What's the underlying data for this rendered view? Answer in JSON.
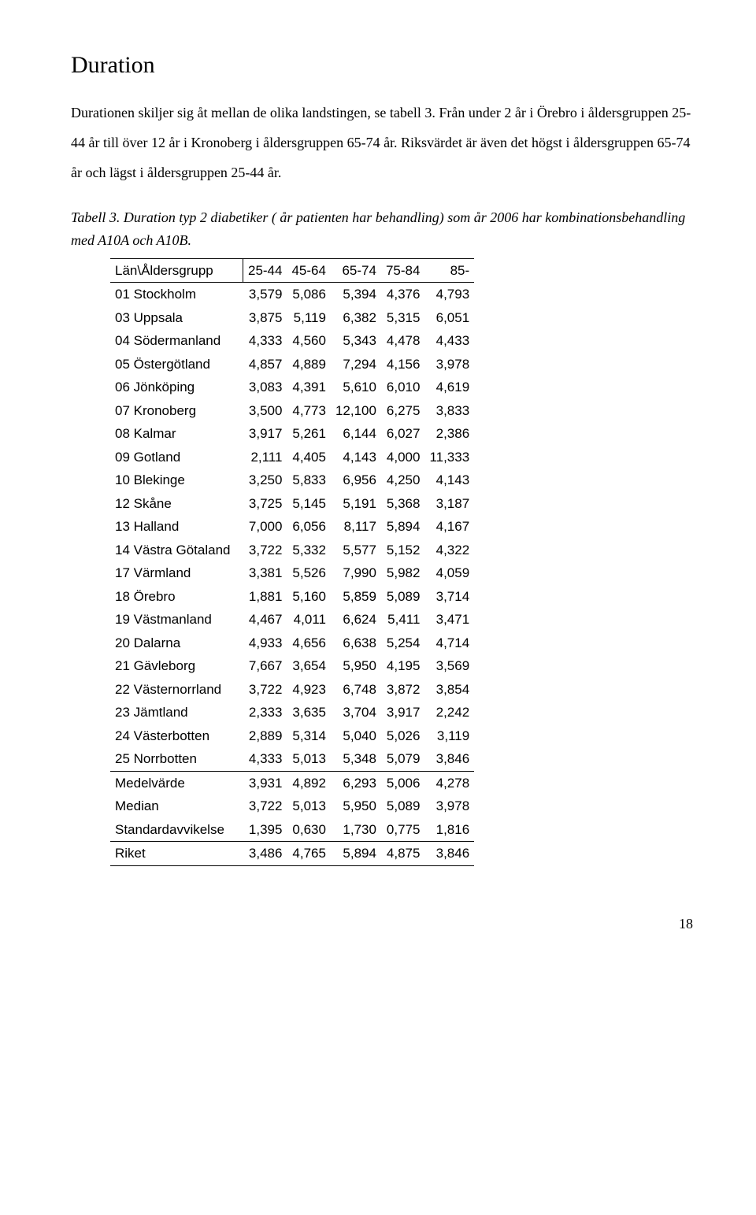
{
  "heading": "Duration",
  "paragraph": "Durationen skiljer sig åt mellan de olika landstingen, se tabell 3. Från under 2 år i Örebro i åldersgruppen 25-44 år till över 12 år i Kronoberg i åldersgruppen 65-74 år. Riksvärdet är även det högst i åldersgruppen 65-74 år och lägst i åldersgruppen 25-44 år.",
  "caption": "Tabell 3. Duration typ 2 diabetiker ( år patienten har behandling) som år 2006 har kombinationsbehandling med A10A och A10B.",
  "table": {
    "header_label": "Län\\Åldersgrupp",
    "columns": [
      "25-44",
      "45-64",
      "65-74",
      "75-84",
      "85-"
    ],
    "rows": [
      {
        "label": "01 Stockholm",
        "v": [
          "3,579",
          "5,086",
          "5,394",
          "4,376",
          "4,793"
        ]
      },
      {
        "label": "03 Uppsala",
        "v": [
          "3,875",
          "5,119",
          "6,382",
          "5,315",
          "6,051"
        ]
      },
      {
        "label": "04 Södermanland",
        "v": [
          "4,333",
          "4,560",
          "5,343",
          "4,478",
          "4,433"
        ]
      },
      {
        "label": "05 Östergötland",
        "v": [
          "4,857",
          "4,889",
          "7,294",
          "4,156",
          "3,978"
        ]
      },
      {
        "label": "06 Jönköping",
        "v": [
          "3,083",
          "4,391",
          "5,610",
          "6,010",
          "4,619"
        ]
      },
      {
        "label": "07 Kronoberg",
        "v": [
          "3,500",
          "4,773",
          "12,100",
          "6,275",
          "3,833"
        ]
      },
      {
        "label": "08 Kalmar",
        "v": [
          "3,917",
          "5,261",
          "6,144",
          "6,027",
          "2,386"
        ]
      },
      {
        "label": "09 Gotland",
        "v": [
          "2,111",
          "4,405",
          "4,143",
          "4,000",
          "11,333"
        ]
      },
      {
        "label": "10 Blekinge",
        "v": [
          "3,250",
          "5,833",
          "6,956",
          "4,250",
          "4,143"
        ]
      },
      {
        "label": "12 Skåne",
        "v": [
          "3,725",
          "5,145",
          "5,191",
          "5,368",
          "3,187"
        ]
      },
      {
        "label": "13 Halland",
        "v": [
          "7,000",
          "6,056",
          "8,117",
          "5,894",
          "4,167"
        ]
      },
      {
        "label": "14 Västra Götaland",
        "v": [
          "3,722",
          "5,332",
          "5,577",
          "5,152",
          "4,322"
        ]
      },
      {
        "label": "17 Värmland",
        "v": [
          "3,381",
          "5,526",
          "7,990",
          "5,982",
          "4,059"
        ]
      },
      {
        "label": "18 Örebro",
        "v": [
          "1,881",
          "5,160",
          "5,859",
          "5,089",
          "3,714"
        ]
      },
      {
        "label": "19 Västmanland",
        "v": [
          "4,467",
          "4,011",
          "6,624",
          "5,411",
          "3,471"
        ]
      },
      {
        "label": "20 Dalarna",
        "v": [
          "4,933",
          "4,656",
          "6,638",
          "5,254",
          "4,714"
        ]
      },
      {
        "label": "21 Gävleborg",
        "v": [
          "7,667",
          "3,654",
          "5,950",
          "4,195",
          "3,569"
        ]
      },
      {
        "label": "22 Västernorrland",
        "v": [
          "3,722",
          "4,923",
          "6,748",
          "3,872",
          "3,854"
        ]
      },
      {
        "label": "23 Jämtland",
        "v": [
          "2,333",
          "3,635",
          "3,704",
          "3,917",
          "2,242"
        ]
      },
      {
        "label": "24 Västerbotten",
        "v": [
          "2,889",
          "5,314",
          "5,040",
          "5,026",
          "3,119"
        ]
      },
      {
        "label": "25 Norrbotten",
        "v": [
          "4,333",
          "5,013",
          "5,348",
          "5,079",
          "3,846"
        ]
      }
    ],
    "summary": [
      {
        "label": "Medelvärde",
        "v": [
          "3,931",
          "4,892",
          "6,293",
          "5,006",
          "4,278"
        ]
      },
      {
        "label": "Median",
        "v": [
          "3,722",
          "5,013",
          "5,950",
          "5,089",
          "3,978"
        ]
      },
      {
        "label": "Standardavvikelse",
        "v": [
          "1,395",
          "0,630",
          "1,730",
          "0,775",
          "1,816"
        ]
      }
    ],
    "footer": {
      "label": "Riket",
      "v": [
        "3,486",
        "4,765",
        "5,894",
        "4,875",
        "3,846"
      ]
    }
  },
  "page_number": "18",
  "style": {
    "body_font": "Times New Roman",
    "table_font": "Arial",
    "text_color": "#000000",
    "background": "#ffffff",
    "border_color": "#000000"
  }
}
